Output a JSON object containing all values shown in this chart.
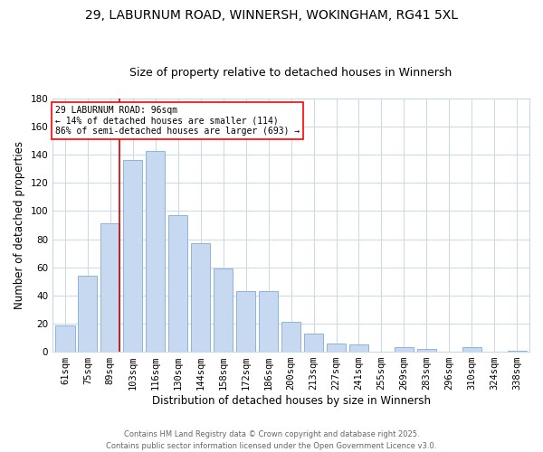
{
  "title": "29, LABURNUM ROAD, WINNERSH, WOKINGHAM, RG41 5XL",
  "subtitle": "Size of property relative to detached houses in Winnersh",
  "xlabel": "Distribution of detached houses by size in Winnersh",
  "ylabel": "Number of detached properties",
  "bar_labels": [
    "61sqm",
    "75sqm",
    "89sqm",
    "103sqm",
    "116sqm",
    "130sqm",
    "144sqm",
    "158sqm",
    "172sqm",
    "186sqm",
    "200sqm",
    "213sqm",
    "227sqm",
    "241sqm",
    "255sqm",
    "269sqm",
    "283sqm",
    "296sqm",
    "310sqm",
    "324sqm",
    "338sqm"
  ],
  "bar_values": [
    19,
    54,
    91,
    136,
    143,
    97,
    77,
    59,
    43,
    43,
    21,
    13,
    6,
    5,
    0,
    3,
    2,
    0,
    3,
    0,
    1
  ],
  "bar_color": "#c6d9f1",
  "bar_edge_color": "#8db4d9",
  "ylim": [
    0,
    180
  ],
  "yticks": [
    0,
    20,
    40,
    60,
    80,
    100,
    120,
    140,
    160,
    180
  ],
  "vline_color": "#cc0000",
  "annotation_line1": "29 LABURNUM ROAD: 96sqm",
  "annotation_line2": "← 14% of detached houses are smaller (114)",
  "annotation_line3": "86% of semi-detached houses are larger (693) →",
  "footer_line1": "Contains HM Land Registry data © Crown copyright and database right 2025.",
  "footer_line2": "Contains public sector information licensed under the Open Government Licence v3.0.",
  "background_color": "#ffffff",
  "grid_color": "#c8d8ea",
  "title_fontsize": 10,
  "subtitle_fontsize": 9,
  "axis_label_fontsize": 8.5,
  "tick_fontsize": 7.5,
  "footer_fontsize": 6
}
